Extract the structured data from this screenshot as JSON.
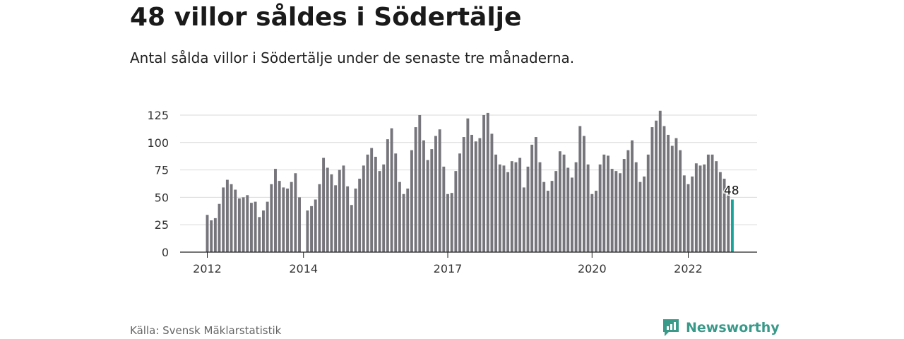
{
  "header": {
    "title": "48 villor såldes i Södertälje",
    "subtitle": "Antal sålda villor i Södertälje under de senaste tre månaderna."
  },
  "footer": {
    "source": "Källa: Svensk Mäklarstatistik",
    "brand": "Newsworthy"
  },
  "colors": {
    "bar": "#76757b",
    "highlight": "#1ba39a",
    "grid": "#d9d9d9",
    "brand": "#3a9a8a"
  },
  "chart_data": {
    "type": "bar",
    "title": "48 villor såldes i Södertälje",
    "ylim": [
      0,
      130
    ],
    "yticks": [
      0,
      25,
      50,
      75,
      100,
      125
    ],
    "x_tick_labels": [
      {
        "label": "2012",
        "index": 0
      },
      {
        "label": "2014",
        "index": 24
      },
      {
        "label": "2017",
        "index": 60
      },
      {
        "label": "2020",
        "index": 96
      },
      {
        "label": "2022",
        "index": 120
      }
    ],
    "grid": true,
    "values": [
      34,
      29,
      31,
      44,
      59,
      66,
      62,
      57,
      49,
      50,
      52,
      45,
      46,
      32,
      38,
      46,
      62,
      76,
      65,
      59,
      58,
      64,
      72,
      50,
      null,
      38,
      42,
      48,
      62,
      86,
      77,
      71,
      61,
      75,
      79,
      60,
      43,
      58,
      67,
      79,
      89,
      95,
      87,
      74,
      80,
      103,
      113,
      90,
      64,
      53,
      58,
      93,
      114,
      125,
      102,
      84,
      94,
      106,
      112,
      78,
      53,
      54,
      74,
      90,
      105,
      122,
      107,
      101,
      104,
      125,
      127,
      108,
      89,
      80,
      79,
      73,
      83,
      82,
      86,
      59,
      78,
      98,
      105,
      82,
      64,
      56,
      65,
      74,
      92,
      89,
      77,
      68,
      82,
      115,
      106,
      80,
      53,
      56,
      80,
      89,
      88,
      76,
      74,
      72,
      85,
      93,
      102,
      82,
      64,
      69,
      89,
      114,
      120,
      129,
      115,
      107,
      97,
      104,
      93,
      70,
      62,
      69,
      81,
      79,
      80,
      89,
      89,
      83,
      73,
      67,
      53,
      48
    ],
    "highlight_index": 131,
    "highlight_label": "48"
  }
}
